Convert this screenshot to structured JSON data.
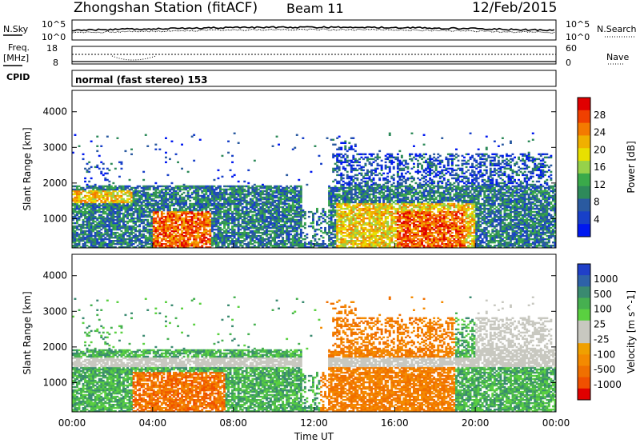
{
  "header": {
    "station": "Zhongshan Station (fitACF)",
    "beam": "Beam 11",
    "date": "12/Feb/2015"
  },
  "top_panels": {
    "nsky_label": "N.Sky",
    "nsky_ticks": [
      "10^5",
      "10^0"
    ],
    "nsearch_label": "N.Search",
    "nsearch_ticks": [
      "10^5",
      "10^0"
    ],
    "freq_label_1": "Freq.",
    "freq_label_2": "[MHz]",
    "freq_ticks": [
      "18",
      "8"
    ],
    "nave_label": "Nave",
    "nave_ticks": [
      "60",
      "0"
    ],
    "cpid_label": "CPID",
    "cpid_value": "normal (fast stereo) 153"
  },
  "chart_data": [
    {
      "type": "heatmap",
      "name": "power",
      "xlabel": "Time UT",
      "ylabel": "Slant Range [km]",
      "xlim": [
        0,
        24
      ],
      "ylim": [
        180,
        4600
      ],
      "x_tick_labels": [
        "00:00",
        "04:00",
        "08:00",
        "12:00",
        "16:00",
        "20:00",
        "00:00"
      ],
      "y_tick_labels": [
        "1000",
        "2000",
        "3000",
        "4000"
      ],
      "colorbar_label": "Power [dB]",
      "colorbar_ticks": [
        "28",
        "24",
        "20",
        "16",
        "12",
        "8",
        "4"
      ],
      "colorbar_colors": [
        "#e00000",
        "#f04000",
        "#f47a00",
        "#f0b000",
        "#e8e000",
        "#96d24a",
        "#3aaa4a",
        "#2e8a5a",
        "#2a5aa0",
        "#1840c8",
        "#0018f0"
      ]
    },
    {
      "type": "heatmap",
      "name": "velocity",
      "xlabel": "Time UT",
      "ylabel": "Slant Range [km]",
      "xlim": [
        0,
        24
      ],
      "ylim": [
        180,
        4600
      ],
      "x_tick_labels": [
        "00:00",
        "04:00",
        "08:00",
        "12:00",
        "16:00",
        "20:00",
        "00:00"
      ],
      "y_tick_labels": [
        "1000",
        "2000",
        "3000",
        "4000"
      ],
      "colorbar_label": "Velocity [m s^-1]",
      "colorbar_ticks": [
        "1000",
        "500",
        "100",
        "25",
        "-25",
        "-100",
        "-500",
        "-1000"
      ],
      "colorbar_colors": [
        "#2040c8",
        "#2e62a8",
        "#3a8a70",
        "#46b050",
        "#5ad040",
        "#c8c8c0",
        "#c8c8c0",
        "#f0a000",
        "#f48a00",
        "#f07000",
        "#f05000",
        "#e00000"
      ]
    }
  ]
}
